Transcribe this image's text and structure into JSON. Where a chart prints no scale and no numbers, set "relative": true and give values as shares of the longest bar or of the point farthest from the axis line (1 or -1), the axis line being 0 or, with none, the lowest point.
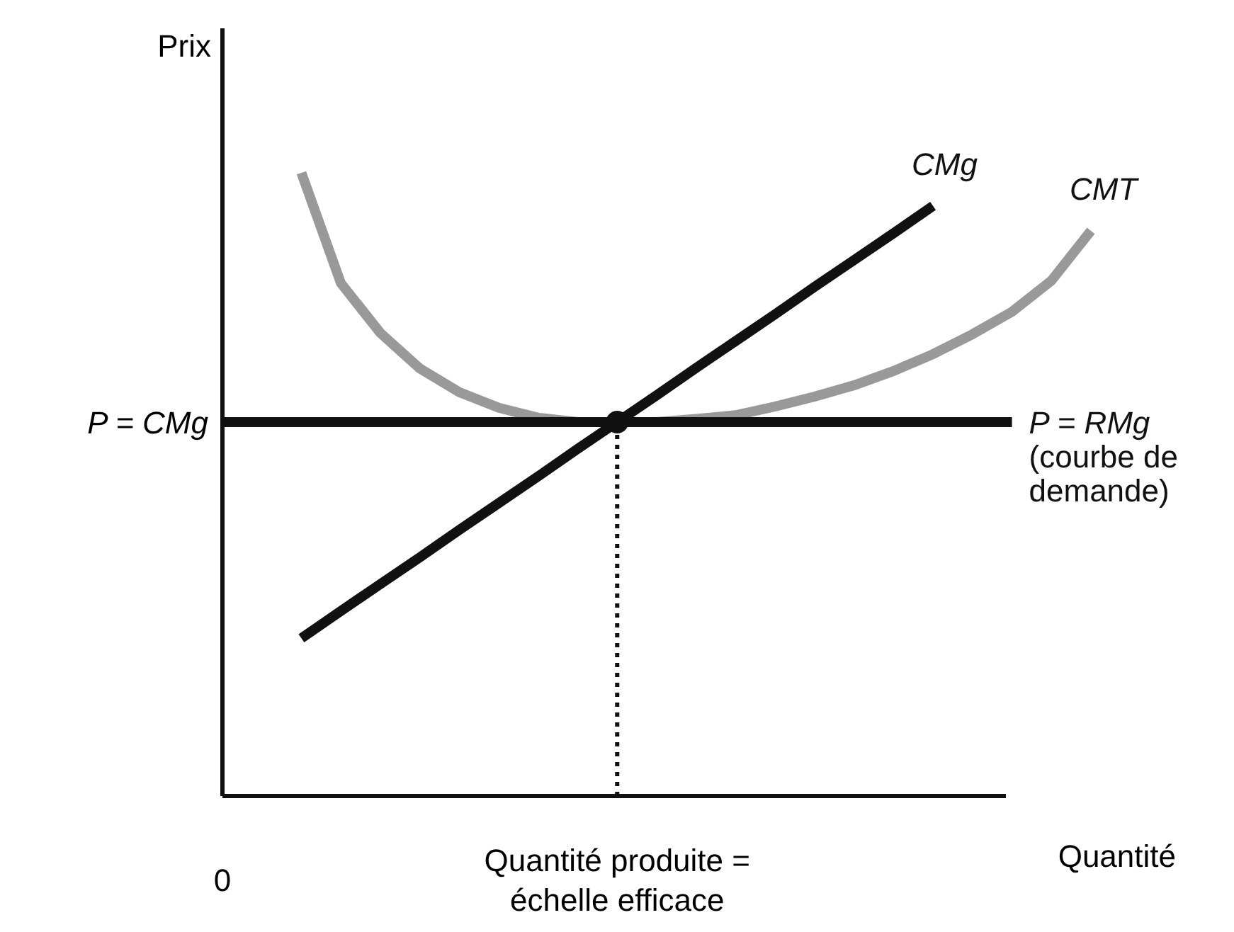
{
  "chart_data": {
    "type": "line",
    "relative": true,
    "xlabel": "Quantité",
    "ylabel": "Prix",
    "categories": [
      "0",
      null,
      null,
      null,
      null,
      null,
      null,
      null,
      null,
      null,
      "Quantité produite =\néchelle efficace",
      null,
      null,
      null,
      null,
      null,
      null,
      null,
      null,
      null,
      null,
      null,
      null
    ],
    "line_style": "solid",
    "annotations": [
      "P = CMg"
    ],
    "series": [
      {
        "name": "CMT",
        "color": "#999999",
        "values": [
          null,
          null,
          1,
          0.823,
          0.743,
          0.686,
          0.648,
          0.623,
          0.607,
          0.6,
          0.6,
          0.6,
          0.605,
          0.611,
          0.625,
          0.641,
          0.659,
          0.682,
          0.709,
          0.741,
          0.777,
          0.827,
          0.907
        ]
      },
      {
        "name": "P = RMg\n(courbe de\ndemande)",
        "color": "#111111",
        "values": [
          0.6,
          0.6,
          0.6,
          0.6,
          0.6,
          0.6,
          0.6,
          0.6,
          0.6,
          0.6,
          0.6,
          0.6,
          0.6,
          0.6,
          0.6,
          0.6,
          0.6,
          0.6,
          0.6,
          0.6,
          0.6,
          null,
          null
        ]
      },
      {
        "name": "CMg",
        "color": "#111111",
        "values": [
          null,
          null,
          0.253,
          0.297,
          0.34,
          0.383,
          0.427,
          0.47,
          0.513,
          0.557,
          0.6,
          0.643,
          0.687,
          0.73,
          0.773,
          0.817,
          0.86,
          0.903,
          0.947,
          null,
          null,
          null,
          null
        ]
      },
      {
        "type": "lollipop",
        "line_style": "dotted",
        "color": "#111111",
        "values": [
          null,
          null,
          null,
          null,
          null,
          null,
          null,
          null,
          null,
          null,
          0.6,
          null,
          null,
          null,
          null,
          null,
          null,
          null,
          null,
          null,
          null,
          null,
          null
        ],
        "marker": "circle"
      }
    ]
  }
}
